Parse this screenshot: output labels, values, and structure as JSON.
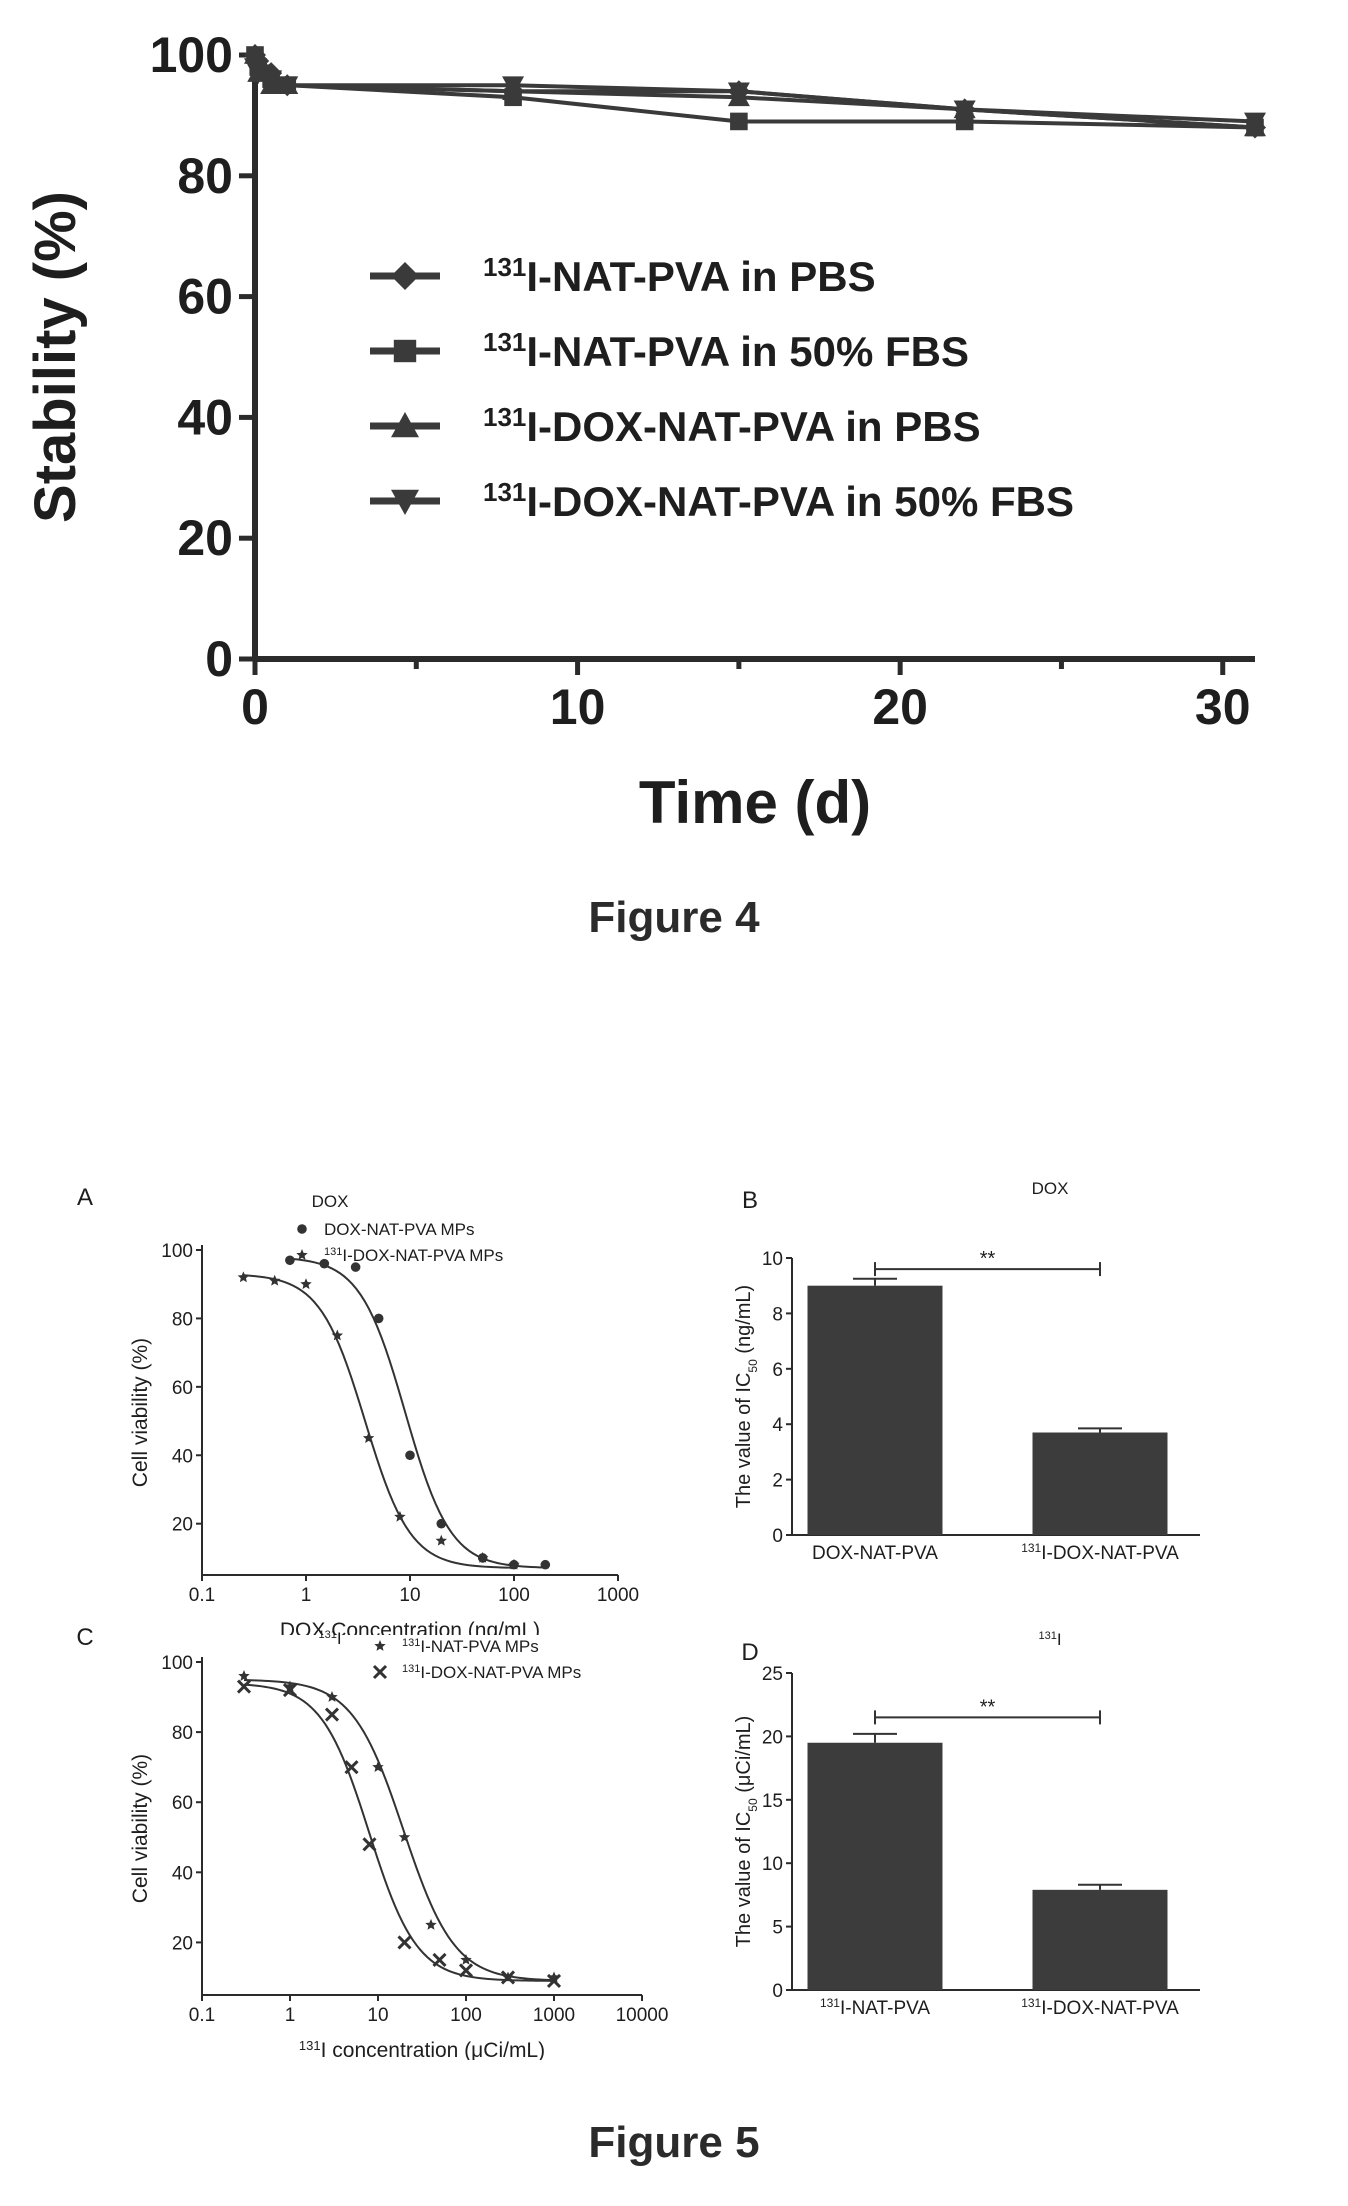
{
  "figure4": {
    "caption": "Figure 4",
    "chart_data": {
      "type": "line",
      "xlabel": "Time (d)",
      "ylabel": "Stability (%)",
      "xlim": [
        0,
        31
      ],
      "ylim": [
        0,
        100
      ],
      "xticks": [
        "0",
        "10",
        "20",
        "30"
      ],
      "yticks": [
        "0",
        "20",
        "40",
        "60",
        "80",
        "100"
      ],
      "legend_position": "center",
      "series": [
        {
          "name": "131I-NAT-PVA in PBS",
          "sup": "131",
          "label": "I-NAT-PVA in PBS",
          "marker": "diamond",
          "x": [
            0,
            0.1,
            0.5,
            1,
            8,
            15,
            22,
            31
          ],
          "y": [
            100,
            99,
            97,
            95,
            94,
            94,
            91,
            88
          ]
        },
        {
          "name": "131I-NAT-PVA in 50% FBS",
          "sup": "131",
          "label": "I-NAT-PVA in 50% FBS",
          "marker": "square",
          "x": [
            0,
            0.1,
            0.5,
            1,
            8,
            15,
            22,
            31
          ],
          "y": [
            100,
            98,
            96,
            95,
            93,
            89,
            89,
            88
          ]
        },
        {
          "name": "131I-DOX-NAT-PVA in PBS",
          "sup": "131",
          "label": "I-DOX-NAT-PVA  in PBS",
          "marker": "triangle",
          "x": [
            0,
            0.1,
            0.5,
            1,
            8,
            15,
            22,
            31
          ],
          "y": [
            100,
            97,
            95,
            95,
            94,
            93,
            91,
            88
          ]
        },
        {
          "name": "131I-DOX-NAT-PVA in 50% FBS",
          "sup": "131",
          "label": "I-DOX-NAT-PVA in 50% FBS",
          "marker": "tri-down",
          "x": [
            0,
            0.1,
            0.5,
            1,
            8,
            15,
            22,
            31
          ],
          "y": [
            98,
            97,
            96,
            95,
            95,
            94,
            91,
            89
          ]
        }
      ]
    }
  },
  "figure5": {
    "caption": "Figure 5",
    "chart_data": [
      {
        "panel": "A",
        "type": "scatter",
        "title": "DOX",
        "xlabel": "DOX Concentration (ng/mL)",
        "ylabel": "Cell viability (%)",
        "xscale": "log",
        "xlim": [
          0.1,
          1000
        ],
        "ylim": [
          5,
          100
        ],
        "xticks": [
          "0.1",
          "1",
          "10",
          "100",
          "1000"
        ],
        "yticks": [
          "20",
          "40",
          "60",
          "80",
          "100"
        ],
        "legend_position": "top-right",
        "series": [
          {
            "name": "DOX-NAT-PVA MPs",
            "sup": "",
            "label": "DOX-NAT-PVA MPs",
            "marker": "circle",
            "x": [
              0.7,
              1.5,
              3,
              5,
              10,
              20,
              50,
              100,
              200
            ],
            "y": [
              97,
              96,
              95,
              80,
              40,
              20,
              10,
              8,
              8
            ],
            "fit": {
              "top": 98,
              "bottom": 7,
              "ic50": 9.0,
              "hill": 2.0
            }
          },
          {
            "name": "131I-DOX-NAT-PVA MPs",
            "sup": "131",
            "label": "I-DOX-NAT-PVA MPs",
            "marker": "star",
            "x": [
              0.25,
              0.5,
              1,
              2,
              4,
              8,
              20,
              50,
              100
            ],
            "y": [
              92,
              91,
              90,
              75,
              45,
              22,
              15,
              10,
              8
            ],
            "fit": {
              "top": 93,
              "bottom": 7,
              "ic50": 3.7,
              "hill": 2.0
            }
          }
        ]
      },
      {
        "panel": "B",
        "type": "bar",
        "title": "DOX",
        "ylabel": "The value of IC50 (ng/mL)",
        "ylabel_main": "The value of IC",
        "ylabel_sub": "50",
        "ylabel_unit": " (ng/mL)",
        "ylim": [
          0,
          10
        ],
        "yticks": [
          "0",
          "2",
          "4",
          "6",
          "8",
          "10"
        ],
        "categories": [
          "DOX-NAT-PVA",
          "131I-DOX-NAT-PVA"
        ],
        "category_parts": [
          {
            "sup": "",
            "text": "DOX-NAT-PVA"
          },
          {
            "sup": "131",
            "text": "I-DOX-NAT-PVA"
          }
        ],
        "values": [
          9.0,
          3.7
        ],
        "errors": [
          0.25,
          0.15
        ],
        "significance": "**"
      },
      {
        "panel": "C",
        "type": "scatter",
        "title": "131I",
        "title_sup": "131",
        "title_main": "I",
        "xlabel": "131I concentration (μCi/mL)",
        "xlabel_sup": "131",
        "xlabel_main": "I concentration (μCi/mL)",
        "ylabel": "Cell viability (%)",
        "xscale": "log",
        "xlim": [
          0.1,
          10000
        ],
        "ylim": [
          5,
          100
        ],
        "xticks": [
          "0.1",
          "1",
          "10",
          "100",
          "1000",
          "10000"
        ],
        "yticks": [
          "20",
          "40",
          "60",
          "80",
          "100"
        ],
        "legend_position": "top-right",
        "series": [
          {
            "name": "131I-NAT-PVA MPs",
            "sup": "131",
            "label": "I-NAT-PVA MPs",
            "marker": "star",
            "x": [
              0.3,
              1,
              3,
              10,
              20,
              40,
              100,
              300,
              1000
            ],
            "y": [
              96,
              93,
              90,
              70,
              50,
              25,
              15,
              10,
              10
            ],
            "fit": {
              "top": 95,
              "bottom": 9,
              "ic50": 19.5,
              "hill": 1.5
            }
          },
          {
            "name": "131I-DOX-NAT-PVA MPs",
            "sup": "131",
            "label": "I-DOX-NAT-PVA MPs",
            "marker": "x",
            "x": [
              0.3,
              1,
              3,
              5,
              8,
              20,
              50,
              100,
              300,
              1000
            ],
            "y": [
              93,
              92,
              85,
              70,
              48,
              20,
              15,
              12,
              10,
              9
            ],
            "fit": {
              "top": 94,
              "bottom": 9,
              "ic50": 7.9,
              "hill": 1.6
            }
          }
        ]
      },
      {
        "panel": "D",
        "type": "bar",
        "title": "131I",
        "title_sup": "131",
        "title_main": "I",
        "ylabel": "The value of IC50 (μCi/mL)",
        "ylabel_main": "The value of IC",
        "ylabel_sub": "50",
        "ylabel_unit": " (μCi/mL)",
        "ylim": [
          0,
          25
        ],
        "yticks": [
          "0",
          "5",
          "10",
          "15",
          "20",
          "25"
        ],
        "categories": [
          "131I-NAT-PVA",
          "131I-DOX-NAT-PVA"
        ],
        "category_parts": [
          {
            "sup": "131",
            "text": "I-NAT-PVA"
          },
          {
            "sup": "131",
            "text": "I-DOX-NAT-PVA"
          }
        ],
        "values": [
          19.5,
          7.9
        ],
        "errors": [
          0.7,
          0.4
        ],
        "significance": "**"
      }
    ]
  }
}
